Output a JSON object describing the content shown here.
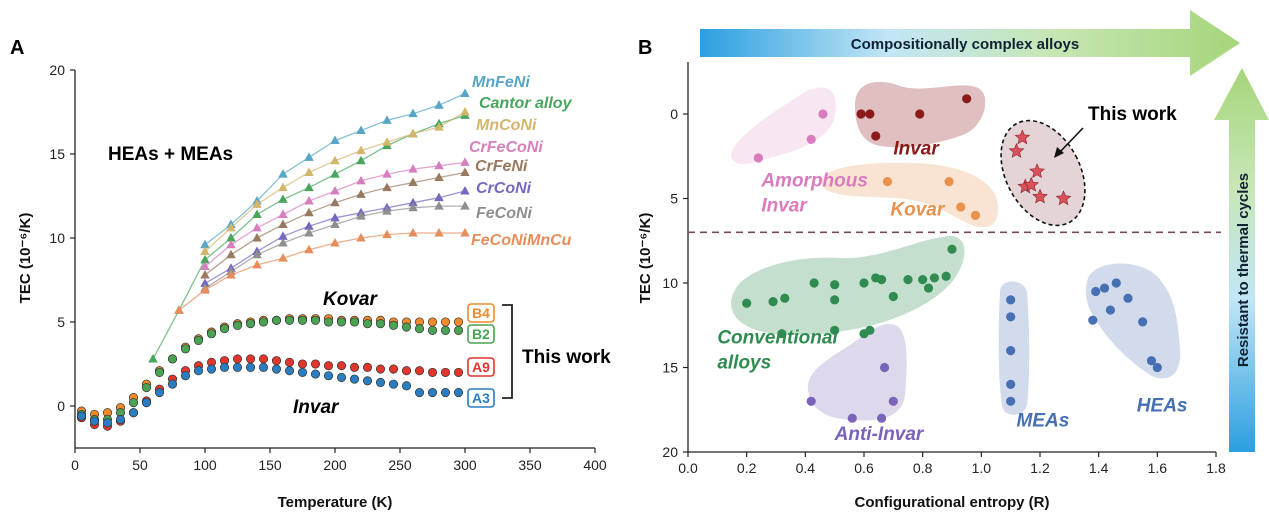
{
  "panel_a": {
    "letter": "A",
    "annotation": "HEAs + MEAs",
    "bracket_label": "This work",
    "alloy_labels": {
      "kovar": "Kovar",
      "invar": "Invar"
    }
  },
  "panel_b": {
    "letter": "B",
    "arrow_horizontal_label": "Compositionally complex alloys",
    "arrow_vertical_label": "Resistant to thermal cycles",
    "this_work_label": "This work"
  },
  "colors": {
    "axis": "#222222",
    "MnFeNi": "#57a6c5",
    "Cantor alloy": "#47a55c",
    "MnCoNi": "#d4b56c",
    "CrFeCoNi": "#d67fbf",
    "CrFeNi": "#987a60",
    "CrCoNi": "#7469bf",
    "FeCoNi": "#8f8f8f",
    "FeCoNiMnCu": "#e58d5b",
    "B4": "#f08a2a",
    "B2": "#4aa352",
    "A9": "#e0362d",
    "A3": "#2a7dc0",
    "invar": "#8b1a1a",
    "amorphous": "#d97bbd",
    "kovar": "#e8924e",
    "conventional": "#2f8b50",
    "anti_invar": "#7a63b8",
    "mea": "#4670b3",
    "hea": "#4670b3",
    "this_work": "#d9525a",
    "arrow_blue": "#2b9fe0",
    "arrow_green": "#a6d57a"
  },
  "chart_data": [
    {
      "type": "line",
      "panel": "A",
      "xlabel": "Temperature (K)",
      "ylabel": "TEC (10⁻⁶/K)",
      "xlim": [
        0,
        400
      ],
      "ylim": [
        -1.5,
        20
      ],
      "xticks": [
        "0",
        "50",
        "100",
        "150",
        "200",
        "250",
        "300",
        "350",
        "400"
      ],
      "yticks": [
        "0",
        "5",
        "10",
        "15",
        "20"
      ],
      "grid": false,
      "series": [
        {
          "name": "MnFeNi",
          "marker": "triangle",
          "x": [
            100,
            120,
            140,
            160,
            180,
            200,
            220,
            240,
            260,
            280,
            300
          ],
          "y": [
            9.6,
            10.8,
            12.2,
            13.8,
            14.8,
            15.8,
            16.4,
            17.0,
            17.4,
            17.9,
            18.6
          ]
        },
        {
          "name": "Cantor alloy",
          "marker": "triangle",
          "x": [
            60,
            80,
            100,
            120,
            140,
            160,
            180,
            200,
            220,
            240,
            260,
            280,
            300
          ],
          "y": [
            2.8,
            5.7,
            8.7,
            10.0,
            11.4,
            12.3,
            13.0,
            13.8,
            14.6,
            15.5,
            16.2,
            16.8,
            17.3
          ]
        },
        {
          "name": "MnCoNi",
          "marker": "triangle",
          "x": [
            100,
            120,
            140,
            160,
            180,
            200,
            220,
            240,
            260,
            280,
            300
          ],
          "y": [
            9.2,
            10.6,
            12.0,
            13.0,
            13.9,
            14.6,
            15.2,
            15.7,
            16.2,
            16.6,
            17.5
          ]
        },
        {
          "name": "CrFeCoNi",
          "marker": "triangle",
          "x": [
            100,
            120,
            140,
            160,
            180,
            200,
            220,
            240,
            260,
            280,
            300
          ],
          "y": [
            8.3,
            9.6,
            10.6,
            11.4,
            12.2,
            12.8,
            13.4,
            13.8,
            14.1,
            14.3,
            14.5
          ]
        },
        {
          "name": "CrFeNi",
          "marker": "triangle",
          "x": [
            100,
            120,
            140,
            160,
            180,
            200,
            220,
            240,
            260,
            280,
            300
          ],
          "y": [
            7.8,
            9.0,
            10.0,
            10.8,
            11.5,
            12.1,
            12.6,
            13.0,
            13.3,
            13.6,
            13.9
          ]
        },
        {
          "name": "CrCoNi",
          "marker": "triangle",
          "x": [
            100,
            120,
            140,
            160,
            180,
            200,
            220,
            240,
            260,
            280,
            300
          ],
          "y": [
            7.3,
            8.2,
            9.2,
            10.1,
            10.7,
            11.2,
            11.5,
            11.8,
            12.1,
            12.4,
            12.8
          ]
        },
        {
          "name": "FeCoNi",
          "marker": "triangle",
          "x": [
            100,
            120,
            140,
            160,
            180,
            200,
            220,
            240,
            260,
            280,
            300
          ],
          "y": [
            7.0,
            8.0,
            9.0,
            9.7,
            10.3,
            10.8,
            11.3,
            11.6,
            11.8,
            11.9,
            11.9
          ]
        },
        {
          "name": "FeCoNiMnCu",
          "marker": "triangle",
          "x": [
            80,
            100,
            120,
            140,
            160,
            180,
            200,
            220,
            240,
            260,
            280,
            300
          ],
          "y": [
            5.7,
            6.9,
            7.8,
            8.4,
            8.8,
            9.3,
            9.7,
            10.0,
            10.2,
            10.3,
            10.3,
            10.3
          ]
        },
        {
          "name": "B4",
          "marker": "circle",
          "x": [
            5,
            15,
            25,
            35,
            45,
            55,
            65,
            75,
            85,
            95,
            105,
            115,
            125,
            135,
            145,
            155,
            165,
            175,
            185,
            195,
            205,
            215,
            225,
            235,
            245,
            255,
            265,
            275,
            285,
            295
          ],
          "y": [
            -0.3,
            -0.5,
            -0.4,
            -0.1,
            0.5,
            1.3,
            2.1,
            2.8,
            3.5,
            4.0,
            4.4,
            4.7,
            4.9,
            5.0,
            5.1,
            5.1,
            5.2,
            5.2,
            5.2,
            5.2,
            5.1,
            5.1,
            5.1,
            5.1,
            5.0,
            5.0,
            5.0,
            5.0,
            5.0,
            5.0
          ]
        },
        {
          "name": "B2",
          "marker": "circle",
          "x": [
            5,
            15,
            25,
            35,
            45,
            55,
            65,
            75,
            85,
            95,
            105,
            115,
            125,
            135,
            145,
            155,
            165,
            175,
            185,
            195,
            205,
            215,
            225,
            235,
            245,
            255,
            265,
            275,
            285,
            295
          ],
          "y": [
            -0.5,
            -0.8,
            -0.8,
            -0.4,
            0.2,
            1.1,
            2.0,
            2.8,
            3.4,
            3.9,
            4.3,
            4.6,
            4.8,
            4.9,
            5.0,
            5.1,
            5.1,
            5.1,
            5.1,
            5.0,
            5.0,
            5.0,
            4.9,
            4.9,
            4.8,
            4.7,
            4.6,
            4.5,
            4.5,
            4.5
          ]
        },
        {
          "name": "A9",
          "marker": "circle",
          "x": [
            5,
            15,
            25,
            35,
            45,
            55,
            65,
            75,
            85,
            95,
            105,
            115,
            125,
            135,
            145,
            155,
            165,
            175,
            185,
            195,
            205,
            215,
            225,
            235,
            245,
            255,
            265,
            275,
            285,
            295
          ],
          "y": [
            -0.7,
            -1.1,
            -1.2,
            -0.9,
            -0.4,
            0.3,
            1.0,
            1.6,
            2.1,
            2.4,
            2.6,
            2.7,
            2.8,
            2.8,
            2.8,
            2.7,
            2.6,
            2.5,
            2.5,
            2.4,
            2.4,
            2.3,
            2.3,
            2.2,
            2.2,
            2.1,
            2.1,
            2.0,
            2.0,
            2.0
          ]
        },
        {
          "name": "A3",
          "marker": "circle",
          "x": [
            5,
            15,
            25,
            35,
            45,
            55,
            65,
            75,
            85,
            95,
            105,
            115,
            125,
            135,
            145,
            155,
            165,
            175,
            185,
            195,
            205,
            215,
            225,
            235,
            245,
            255,
            265,
            275,
            285,
            295
          ],
          "y": [
            -0.6,
            -0.9,
            -1.0,
            -0.8,
            -0.4,
            0.2,
            0.8,
            1.3,
            1.8,
            2.1,
            2.2,
            2.3,
            2.3,
            2.3,
            2.3,
            2.2,
            2.1,
            2.0,
            1.9,
            1.8,
            1.7,
            1.6,
            1.5,
            1.4,
            1.3,
            1.2,
            0.8,
            0.8,
            0.8,
            0.8
          ]
        }
      ]
    },
    {
      "type": "scatter",
      "panel": "B",
      "xlabel": "Configurational entropy (R)",
      "ylabel": "TEC (10⁻⁶/K)",
      "xlim": [
        0.0,
        1.8
      ],
      "ylim": [
        20,
        -2.5
      ],
      "y_inverted": true,
      "xticks": [
        "0.0",
        "0.2",
        "0.4",
        "0.6",
        "0.8",
        "1.0",
        "1.2",
        "1.4",
        "1.6",
        "1.8"
      ],
      "yticks": [
        "0",
        "5",
        "10",
        "15",
        "20"
      ],
      "reference_line_y": 7,
      "grid": false,
      "groups": [
        {
          "name": "Invar",
          "color_key": "invar",
          "marker": "circle",
          "label_pos": [
            0.7,
            2.4
          ],
          "x": [
            0.59,
            0.62,
            0.64,
            0.79,
            0.95
          ],
          "y": [
            0,
            0,
            1.3,
            0,
            -0.9
          ]
        },
        {
          "name": "Amorphous\nInvar",
          "color_key": "amorphous",
          "marker": "circle",
          "label_pos": [
            0.25,
            5.0
          ],
          "x": [
            0.24,
            0.42,
            0.46
          ],
          "y": [
            2.6,
            1.5,
            0
          ]
        },
        {
          "name": "Kovar",
          "color_key": "kovar",
          "marker": "circle",
          "label_pos": [
            0.69,
            6.0
          ],
          "x": [
            0.68,
            0.89,
            0.93,
            0.98
          ],
          "y": [
            4.0,
            4.0,
            5.5,
            6.0
          ]
        },
        {
          "name": "This work",
          "color_key": "this_work",
          "marker": "star",
          "x": [
            1.12,
            1.14,
            1.15,
            1.17,
            1.19,
            1.2,
            1.28
          ],
          "y": [
            2.2,
            1.4,
            4.3,
            4.2,
            3.4,
            4.9,
            5.0
          ]
        },
        {
          "name": "Conventional\nalloys",
          "color_key": "conventional",
          "marker": "circle",
          "label_pos": [
            0.1,
            14.3
          ],
          "x": [
            0.2,
            0.29,
            0.32,
            0.33,
            0.43,
            0.5,
            0.5,
            0.5,
            0.6,
            0.6,
            0.62,
            0.64,
            0.66,
            0.7,
            0.75,
            0.8,
            0.82,
            0.84,
            0.88,
            0.9
          ],
          "y": [
            11.2,
            11.1,
            13.0,
            10.9,
            10.0,
            10.1,
            11.0,
            12.8,
            10.0,
            13.0,
            12.8,
            9.7,
            9.8,
            10.8,
            9.8,
            9.8,
            10.3,
            9.7,
            9.6,
            8.0
          ]
        },
        {
          "name": "Anti-Invar",
          "color_key": "anti_invar",
          "marker": "circle",
          "label_pos": [
            0.5,
            19.3
          ],
          "x": [
            0.42,
            0.56,
            0.66,
            0.67,
            0.7
          ],
          "y": [
            17.0,
            18.0,
            18.0,
            15.0,
            17.0
          ]
        },
        {
          "name": "MEAs",
          "color_key": "mea",
          "marker": "circle",
          "label_pos": [
            1.12,
            18.5
          ],
          "x": [
            1.1,
            1.1,
            1.1,
            1.1,
            1.1
          ],
          "y": [
            11.0,
            12.0,
            14.0,
            16.0,
            17.0
          ]
        },
        {
          "name": "HEAs",
          "color_key": "hea",
          "marker": "circle",
          "label_pos": [
            1.53,
            17.6
          ],
          "x": [
            1.38,
            1.39,
            1.42,
            1.44,
            1.46,
            1.5,
            1.55,
            1.58,
            1.6
          ],
          "y": [
            12.2,
            10.5,
            10.3,
            11.6,
            10.0,
            10.9,
            12.3,
            14.6,
            15.0
          ]
        }
      ]
    }
  ]
}
